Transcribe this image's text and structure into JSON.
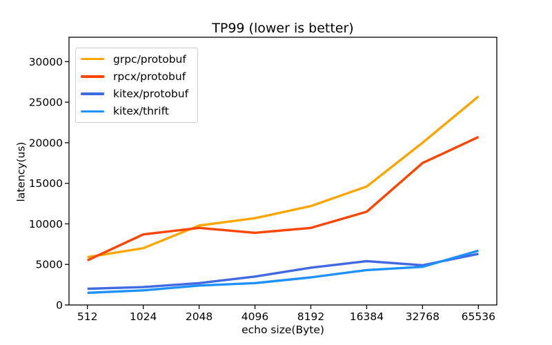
{
  "figure": {
    "background": "#ffffff",
    "axis_color": "#000000",
    "legend_border_color": "#cccccc"
  },
  "chart_data": {
    "type": "line",
    "title": "TP99 (lower is better)",
    "xlabel": "echo size(Byte)",
    "ylabel": "latency(us)",
    "categories": [
      "512",
      "1024",
      "2048",
      "4096",
      "8192",
      "16384",
      "32768",
      "65536"
    ],
    "yticks": [
      0,
      5000,
      10000,
      15000,
      20000,
      25000,
      30000
    ],
    "ylim": [
      0,
      33000
    ],
    "grid": false,
    "legend_position": "upper-left",
    "series": [
      {
        "name": "grpc/protobuf",
        "color": "#ffa500",
        "values": [
          5900,
          7000,
          9800,
          10700,
          12200,
          14600,
          20000,
          25700
        ]
      },
      {
        "name": "rpcx/protobuf",
        "color": "#ff4500",
        "values": [
          5500,
          8700,
          9500,
          8900,
          9500,
          11500,
          17500,
          20700
        ]
      },
      {
        "name": "kitex/protobuf",
        "color": "#4169e1",
        "values": [
          2000,
          2200,
          2700,
          3500,
          4600,
          5400,
          4900,
          6300
        ]
      },
      {
        "name": "kitex/thrift",
        "color": "#1e90ff",
        "values": [
          1500,
          1800,
          2400,
          2700,
          3400,
          4300,
          4700,
          6700
        ]
      }
    ]
  }
}
